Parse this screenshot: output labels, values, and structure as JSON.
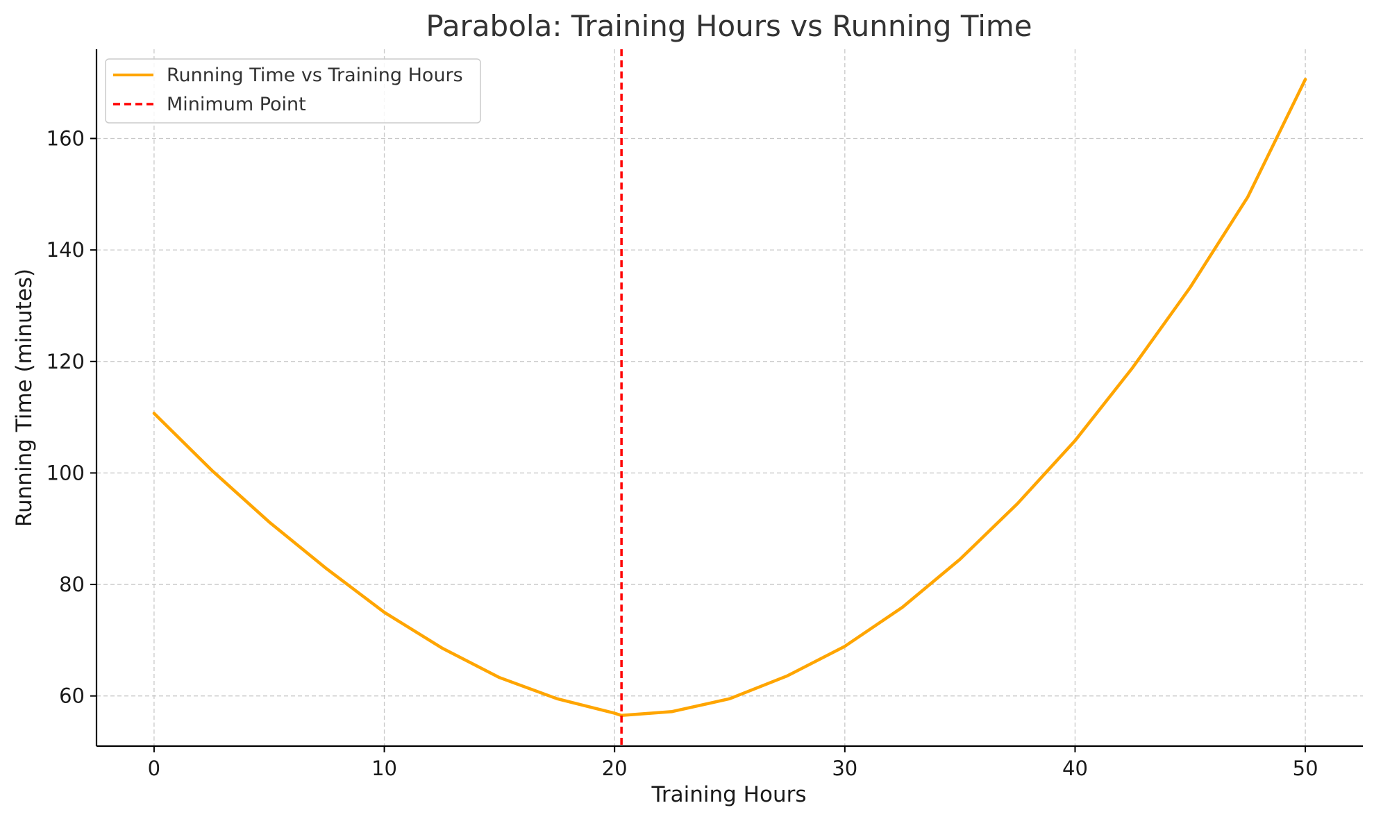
{
  "chart_data": {
    "type": "line",
    "title": "Parabola: Training Hours vs Running Time",
    "xlabel": "Training Hours",
    "ylabel": "Running Time (minutes)",
    "xlim": [
      -2.5,
      52.5
    ],
    "ylim": [
      51,
      176
    ],
    "xticks": [
      0,
      10,
      20,
      30,
      40,
      50
    ],
    "yticks": [
      60,
      80,
      100,
      120,
      140,
      160
    ],
    "grid": true,
    "legend_position": "upper-left",
    "series": [
      {
        "name": "Running Time vs Training Hours",
        "color": "#FFA500",
        "style": "solid",
        "x": [
          0,
          2.5,
          5,
          7.5,
          10,
          12.5,
          15,
          17.5,
          20,
          20.3,
          22.5,
          25,
          27.5,
          30,
          32.5,
          35,
          37.5,
          40,
          42.5,
          45,
          47.5,
          50
        ],
        "y": [
          110.7,
          100.5,
          91.2,
          82.8,
          75.0,
          68.6,
          63.3,
          59.5,
          56.9,
          56.5,
          57.2,
          59.5,
          63.6,
          68.9,
          75.9,
          84.5,
          94.5,
          105.8,
          118.9,
          133.3,
          149.5,
          170.6
        ]
      },
      {
        "name": "Minimum Point",
        "color": "#FF0000",
        "style": "dashed",
        "type": "vline",
        "x": 20.3
      }
    ]
  }
}
